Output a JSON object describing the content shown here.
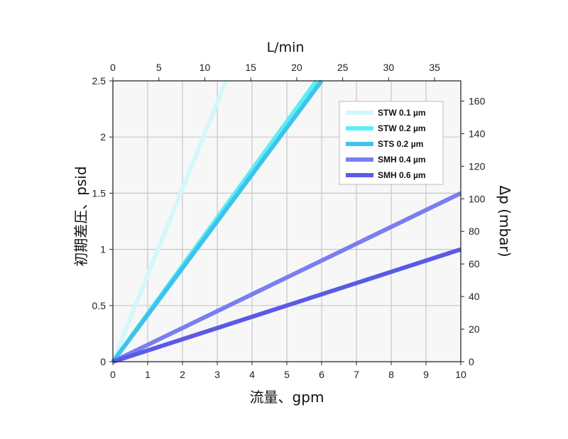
{
  "chart_data": {
    "type": "line",
    "xlabel": "流量、gpm",
    "ylabel": "初期差圧、psid",
    "x2label": "L/min",
    "y2label": "Δp (mbar)",
    "xlim": [
      0,
      10
    ],
    "ylim": [
      0,
      2.5
    ],
    "x2lim": [
      0,
      37.85
    ],
    "y2lim": [
      0,
      172.4
    ],
    "x_ticks": [
      "0",
      "1",
      "2",
      "3",
      "4",
      "5",
      "6",
      "7",
      "8",
      "9",
      "10"
    ],
    "y_ticks": [
      "0",
      "0.5",
      "1",
      "1.5",
      "2",
      "2.5"
    ],
    "x2_ticks": [
      "0",
      "5",
      "10",
      "15",
      "20",
      "25",
      "30",
      "35"
    ],
    "y2_ticks": [
      "0",
      "20",
      "40",
      "60",
      "80",
      "100",
      "120",
      "140",
      "160"
    ],
    "grid": true,
    "legend_position": "top-right",
    "series": [
      {
        "name": "STW 0.1 µm",
        "color": "#d2f8fb",
        "x": [
          0,
          3.25
        ],
        "y": [
          0,
          2.5
        ]
      },
      {
        "name": "STW 0.2 µm",
        "color": "#5ceef5",
        "x": [
          0,
          5.85
        ],
        "y": [
          0,
          2.5
        ]
      },
      {
        "name": "STS 0.2 µm",
        "color": "#3dc3ec",
        "x": [
          0,
          6.0
        ],
        "y": [
          0,
          2.5
        ]
      },
      {
        "name": "SMH 0.4 µm",
        "color": "#7a7ef0",
        "x": [
          0,
          10
        ],
        "y": [
          0,
          1.5
        ]
      },
      {
        "name": "SMH 0.6 µm",
        "color": "#5b5ae6",
        "x": [
          0,
          10
        ],
        "y": [
          0,
          1.0
        ]
      }
    ]
  }
}
